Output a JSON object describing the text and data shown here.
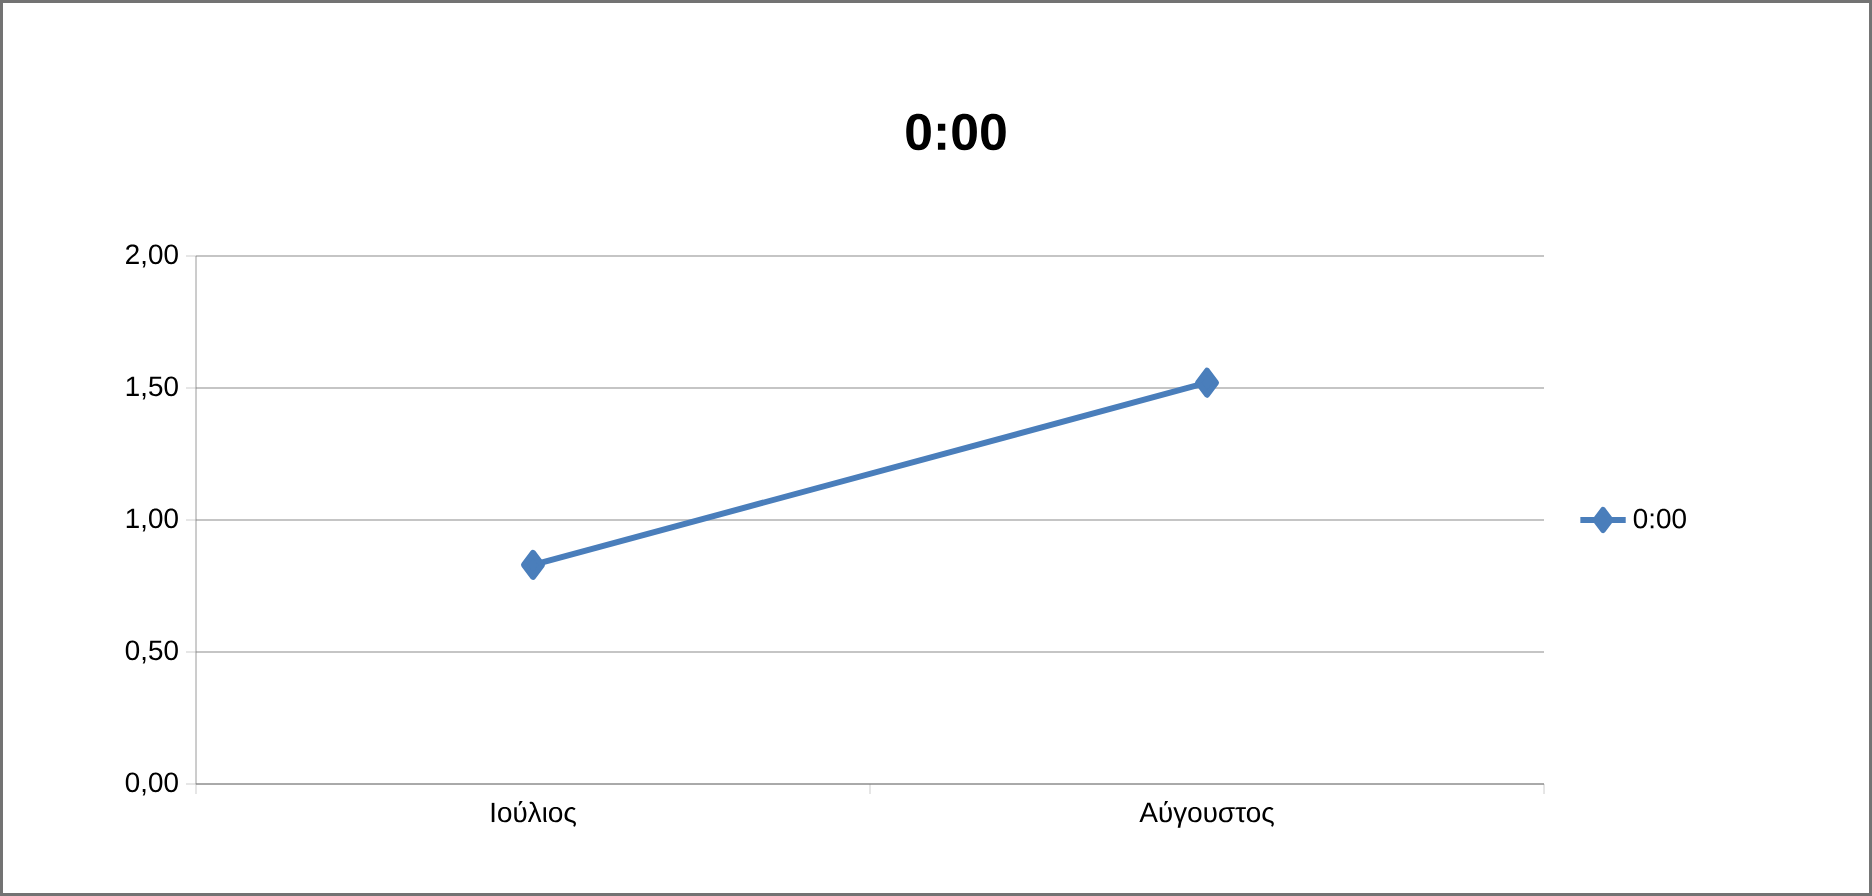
{
  "chart_data": {
    "type": "line",
    "title": "0:00",
    "categories": [
      "Ιούλιος",
      "Αύγουστος"
    ],
    "series": [
      {
        "name": "0:00",
        "color": "#4a7ebb",
        "values": [
          0.83,
          1.52
        ]
      }
    ],
    "ylim": [
      0,
      2
    ],
    "yticks": [
      {
        "value": 0,
        "label": "0,00"
      },
      {
        "value": 0.5,
        "label": "0,50"
      },
      {
        "value": 1,
        "label": "1,00"
      },
      {
        "value": 1.5,
        "label": "1,50"
      },
      {
        "value": 2,
        "label": "2,00"
      }
    ],
    "grid": "y",
    "legend": "right",
    "marker": "diamond",
    "line_style": "solid"
  }
}
